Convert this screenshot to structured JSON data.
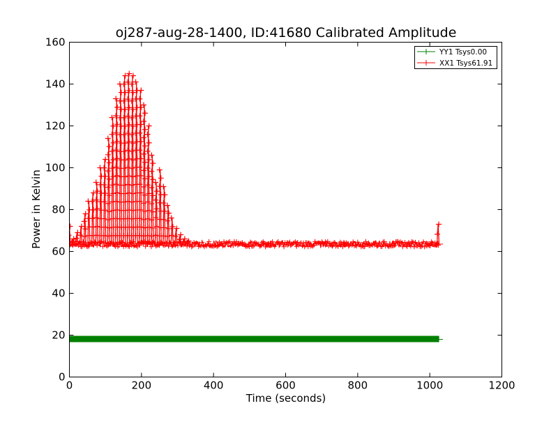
{
  "chart_data": {
    "type": "line",
    "title": "oj287-aug-28-1400, ID:41680 Calibrated Amplitude",
    "xlabel": "Time (seconds)",
    "ylabel": "Power in Kelvin",
    "xlim": [
      0,
      1200
    ],
    "ylim": [
      0,
      160
    ],
    "xticks": [
      "0",
      "200",
      "400",
      "600",
      "800",
      "1000",
      "1200"
    ],
    "yticks": [
      "0",
      "20",
      "40",
      "60",
      "80",
      "100",
      "120",
      "140",
      "160"
    ],
    "grid": false,
    "legend_position": "top-right",
    "series": [
      {
        "name": "YY1 Tsys0.00",
        "color": "#008000",
        "marker": "+",
        "baseline": 18,
        "x_range": [
          0,
          1025
        ],
        "approximate": true
      },
      {
        "name": "XX1 Tsys61.91",
        "color": "#ff0000",
        "marker": "+",
        "baseline": 63.5,
        "x_range": [
          0,
          1025
        ],
        "approximate": true,
        "scan_peaks": [
          {
            "x": 0,
            "y": 72
          },
          {
            "x": 10,
            "y": 66
          },
          {
            "x": 21,
            "y": 69
          },
          {
            "x": 32,
            "y": 72
          },
          {
            "x": 43,
            "y": 78
          },
          {
            "x": 54,
            "y": 84
          },
          {
            "x": 65,
            "y": 88
          },
          {
            "x": 76,
            "y": 93
          },
          {
            "x": 87,
            "y": 100
          },
          {
            "x": 98,
            "y": 104
          },
          {
            "x": 109,
            "y": 114
          },
          {
            "x": 120,
            "y": 124
          },
          {
            "x": 131,
            "y": 133
          },
          {
            "x": 142,
            "y": 140
          },
          {
            "x": 153,
            "y": 144
          },
          {
            "x": 164,
            "y": 145
          },
          {
            "x": 175,
            "y": 144
          },
          {
            "x": 186,
            "y": 141
          },
          {
            "x": 197,
            "y": 137
          },
          {
            "x": 208,
            "y": 130
          },
          {
            "x": 219,
            "y": 120
          },
          {
            "x": 230,
            "y": 106
          },
          {
            "x": 241,
            "y": 93
          },
          {
            "x": 252,
            "y": 99
          },
          {
            "x": 263,
            "y": 91
          },
          {
            "x": 274,
            "y": 82
          },
          {
            "x": 285,
            "y": 76
          },
          {
            "x": 296,
            "y": 71
          },
          {
            "x": 307,
            "y": 68
          },
          {
            "x": 318,
            "y": 66
          },
          {
            "x": 329,
            "y": 65
          },
          {
            "x": 1023,
            "y": 73
          }
        ]
      }
    ]
  }
}
